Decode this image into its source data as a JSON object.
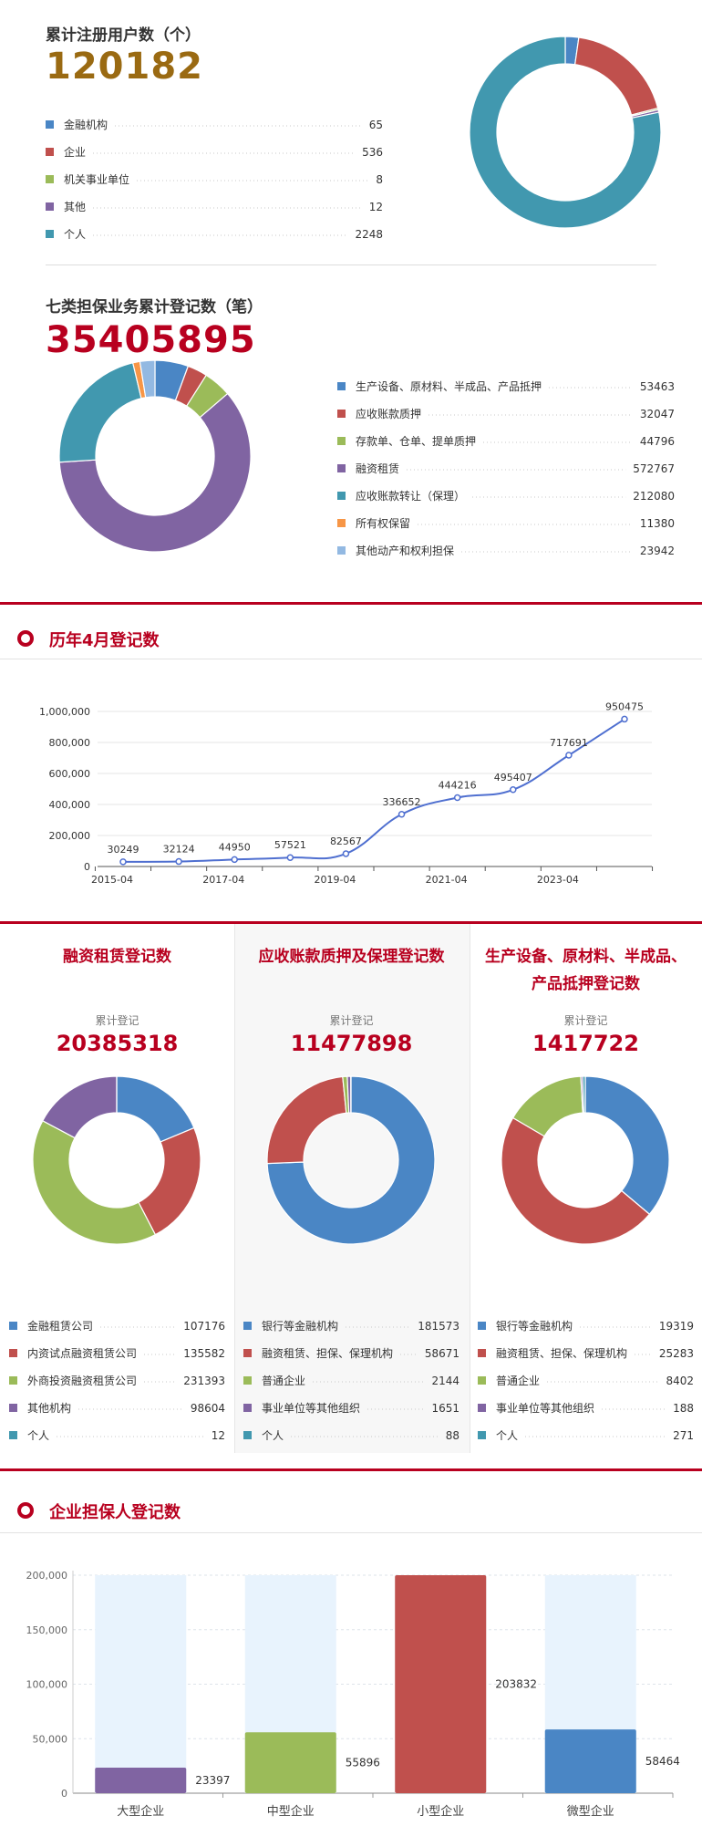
{
  "users": {
    "title": "累计注册用户数（个）",
    "total": "120182",
    "items": [
      {
        "label": "金融机构",
        "value": 65,
        "display": "65",
        "color": "#4a86c5"
      },
      {
        "label": "企业",
        "value": 536,
        "display": "536",
        "color": "#c0504d"
      },
      {
        "label": "机关事业单位",
        "value": 8,
        "display": "8",
        "color": "#9bbb59"
      },
      {
        "label": "其他",
        "value": 12,
        "display": "12",
        "color": "#8064a2"
      },
      {
        "label": "个人",
        "value": 2248,
        "display": "2248",
        "color": "#4198af"
      }
    ]
  },
  "guarantee": {
    "title": "七类担保业务累计登记数（笔）",
    "total": "35405895",
    "items": [
      {
        "label": "生产设备、原材料、半成品、产品抵押",
        "value": 53463,
        "display": "53463",
        "color": "#4a86c5"
      },
      {
        "label": "应收账款质押",
        "value": 32047,
        "display": "32047",
        "color": "#c0504d"
      },
      {
        "label": "存款单、仓单、提单质押",
        "value": 44796,
        "display": "44796",
        "color": "#9bbb59"
      },
      {
        "label": "融资租赁",
        "value": 572767,
        "display": "572767",
        "color": "#8064a2"
      },
      {
        "label": "应收账款转让（保理）",
        "value": 212080,
        "display": "212080",
        "color": "#4198af"
      },
      {
        "label": "所有权保留",
        "value": 11380,
        "display": "11380",
        "color": "#f79646"
      },
      {
        "label": "其他动产和权利担保",
        "value": 23942,
        "display": "23942",
        "color": "#93b9e2"
      }
    ]
  },
  "april": {
    "title": "历年4月登记数",
    "chart_data": {
      "type": "line",
      "x": [
        "2015-04",
        "2016-04",
        "2017-04",
        "2018-04",
        "2019-04",
        "2020-04",
        "2021-04",
        "2022-04",
        "2023-04",
        "2024-04"
      ],
      "series": [
        {
          "values": [
            30249,
            32124,
            44950,
            57521,
            82567,
            336652,
            444216,
            495407,
            717691,
            950475
          ]
        }
      ],
      "data_labels": [
        "30249",
        "32124",
        "44950",
        "57521",
        "82567",
        "336652",
        "444216",
        "495407",
        "717691",
        "950475"
      ],
      "x_tick_labels": [
        "2015-04",
        "2017-04",
        "2019-04",
        "2021-04",
        "2023-04"
      ],
      "y_ticks": [
        0,
        200000,
        400000,
        600000,
        800000,
        1000000
      ],
      "y_tick_labels": [
        "0",
        "200,000",
        "400,000",
        "600,000",
        "800,000",
        "1,000,000"
      ],
      "ylim": [
        0,
        1000000
      ],
      "grid": true,
      "color": "#4f6fd0"
    }
  },
  "columns": [
    {
      "title": [
        "融资租赁登记数"
      ],
      "sub": "累计登记",
      "total": "20385318",
      "items": [
        {
          "label": "金融租赁公司",
          "value": 107176,
          "display": "107176",
          "color": "#4a86c5"
        },
        {
          "label": "内资试点融资租赁公司",
          "value": 135582,
          "display": "135582",
          "color": "#c0504d"
        },
        {
          "label": "外商投资融资租赁公司",
          "value": 231393,
          "display": "231393",
          "color": "#9bbb59"
        },
        {
          "label": "其他机构",
          "value": 98604,
          "display": "98604",
          "color": "#8064a2"
        },
        {
          "label": "个人",
          "value": 12,
          "display": "12",
          "color": "#4198af"
        }
      ]
    },
    {
      "title": [
        "应收账款质押及保理登记数"
      ],
      "sub": "累计登记",
      "total": "11477898",
      "items": [
        {
          "label": "银行等金融机构",
          "value": 181573,
          "display": "181573",
          "color": "#4a86c5"
        },
        {
          "label": "融资租赁、担保、保理机构",
          "value": 58671,
          "display": "58671",
          "color": "#c0504d"
        },
        {
          "label": "普通企业",
          "value": 2144,
          "display": "2144",
          "color": "#9bbb59"
        },
        {
          "label": "事业单位等其他组织",
          "value": 1651,
          "display": "1651",
          "color": "#8064a2"
        },
        {
          "label": "个人",
          "value": 88,
          "display": "88",
          "color": "#4198af"
        }
      ]
    },
    {
      "title": [
        "生产设备、原材料、半成品、",
        "产品抵押登记数"
      ],
      "sub": "累计登记",
      "total": "1417722",
      "items": [
        {
          "label": "银行等金融机构",
          "value": 19319,
          "display": "19319",
          "color": "#4a86c5"
        },
        {
          "label": "融资租赁、担保、保理机构",
          "value": 25283,
          "display": "25283",
          "color": "#c0504d"
        },
        {
          "label": "普通企业",
          "value": 8402,
          "display": "8402",
          "color": "#9bbb59"
        },
        {
          "label": "事业单位等其他组织",
          "value": 188,
          "display": "188",
          "color": "#8064a2"
        },
        {
          "label": "个人",
          "value": 271,
          "display": "271",
          "color": "#4198af"
        }
      ]
    }
  ],
  "enterprise": {
    "title": "企业担保人登记数",
    "chart_data": {
      "type": "bar",
      "categories": [
        "大型企业",
        "中型企业",
        "小型企业",
        "微型企业"
      ],
      "values": [
        23397,
        55896,
        203832,
        58464
      ],
      "data_labels": [
        "23397",
        "55896",
        "203832",
        "58464"
      ],
      "colors": [
        "#8064a2",
        "#9bbb59",
        "#c0504d",
        "#4a86c5"
      ],
      "background_bar_color": "#e8f3fd",
      "y_ticks": [
        0,
        50000,
        100000,
        150000,
        200000
      ],
      "y_tick_labels": [
        "0",
        "50,000",
        "100,000",
        "150,000",
        "200,000"
      ],
      "ylim": [
        0,
        200000
      ],
      "grid": true
    }
  }
}
